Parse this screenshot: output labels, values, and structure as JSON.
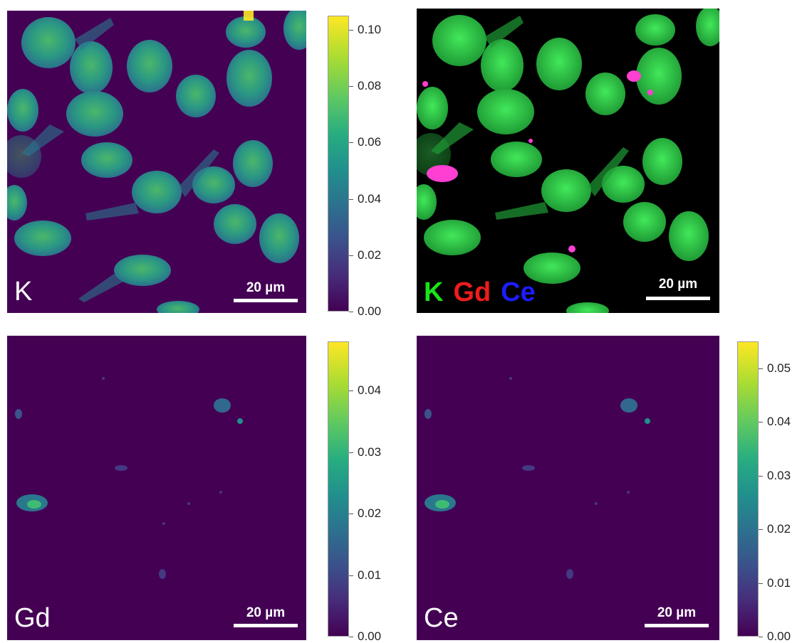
{
  "panels": {
    "k": {
      "label": "K",
      "scale_bar": "20 µm"
    },
    "overlay": {
      "scale_bar": "20 µm",
      "legend": [
        {
          "text": "K",
          "color": "#19e619"
        },
        {
          "text": "Gd",
          "color": "#ee1c1c"
        },
        {
          "text": "Ce",
          "color": "#1c1cff"
        }
      ]
    },
    "gd": {
      "label": "Gd",
      "scale_bar": "20 µm"
    },
    "ce": {
      "label": "Ce",
      "scale_bar": "20 µm"
    }
  },
  "colorbars": {
    "k": {
      "ticks": [
        "0.00",
        "0.02",
        "0.04",
        "0.06",
        "0.08",
        "0.10"
      ],
      "max": 0.105
    },
    "gd": {
      "ticks": [
        "0.00",
        "0.01",
        "0.02",
        "0.03",
        "0.04"
      ],
      "max": 0.048
    },
    "ce": {
      "ticks": [
        "0.00",
        "0.01",
        "0.02",
        "0.03",
        "0.04",
        "0.05"
      ],
      "max": 0.055
    }
  },
  "colors": {
    "map_background": "#440154",
    "overlay_background": "#000000",
    "cell_fill": "#2fa38a",
    "overlay_cell": "#2bd84a",
    "overlay_particle": "#ff3fd2",
    "particle_fill": "#31688e"
  }
}
